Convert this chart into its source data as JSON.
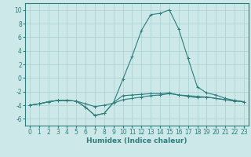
{
  "xlabel": "Humidex (Indice chaleur)",
  "x_values": [
    0,
    1,
    2,
    3,
    4,
    5,
    6,
    7,
    8,
    9,
    10,
    11,
    12,
    13,
    14,
    15,
    16,
    17,
    18,
    19,
    20,
    21,
    22,
    23
  ],
  "series": [
    {
      "y": [
        -4.0,
        -3.8,
        -3.5,
        -3.3,
        -3.3,
        -3.4,
        -4.3,
        -5.5,
        -5.2,
        -3.6,
        -2.6,
        -2.5,
        -2.4,
        -2.3,
        -2.3,
        -2.2,
        -2.5,
        -2.6,
        -2.7,
        -2.8,
        -3.0,
        -3.2,
        -3.3,
        -3.5
      ]
    },
    {
      "y": [
        -4.0,
        -3.8,
        -3.5,
        -3.3,
        -3.3,
        -3.4,
        -4.3,
        -5.5,
        -5.2,
        -3.6,
        -0.2,
        3.2,
        7.0,
        9.3,
        9.5,
        10.0,
        7.2,
        2.9,
        -1.3,
        -2.2,
        -2.5,
        -3.0,
        -3.3,
        -3.5
      ]
    },
    {
      "y": [
        -4.0,
        -3.8,
        -3.5,
        -3.3,
        -3.3,
        -3.4,
        -3.8,
        -4.2,
        -4.0,
        -3.7,
        -3.2,
        -3.0,
        -2.8,
        -2.6,
        -2.5,
        -2.3,
        -2.5,
        -2.7,
        -2.9,
        -2.8,
        -3.0,
        -3.2,
        -3.4,
        -3.5
      ]
    }
  ],
  "ylim": [
    -7,
    11
  ],
  "xlim": [
    -0.5,
    23.5
  ],
  "yticks": [
    -6,
    -4,
    -2,
    0,
    2,
    4,
    6,
    8,
    10
  ],
  "xticks": [
    0,
    1,
    2,
    3,
    4,
    5,
    6,
    7,
    8,
    9,
    10,
    11,
    12,
    13,
    14,
    15,
    16,
    17,
    18,
    19,
    20,
    21,
    22,
    23
  ],
  "bg_color": "#cce8e8",
  "grid_color": "#aacfcf",
  "line_color": "#2e7d7d",
  "label_fontsize": 6.5,
  "tick_fontsize": 5.5
}
